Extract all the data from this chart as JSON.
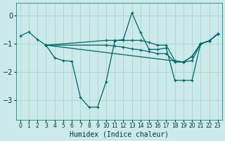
{
  "xlabel": "Humidex (Indice chaleur)",
  "background_color": "#cceaea",
  "grid_color": "#aad4d4",
  "line_color": "#006666",
  "xlim": [
    -0.5,
    23.5
  ],
  "ylim": [
    -3.7,
    0.45
  ],
  "yticks": [
    0,
    -1,
    -2,
    -3
  ],
  "xticks": [
    0,
    1,
    2,
    3,
    4,
    5,
    6,
    7,
    8,
    9,
    10,
    11,
    12,
    13,
    14,
    15,
    16,
    17,
    18,
    19,
    20,
    21,
    22,
    23
  ],
  "lines": [
    {
      "x": [
        0,
        1,
        2,
        3,
        4,
        5,
        6,
        7,
        8,
        9,
        10,
        11,
        12,
        13,
        14,
        15,
        16,
        17,
        18,
        19,
        20,
        21,
        22,
        23
      ],
      "y": [
        -0.72,
        -0.58,
        -0.85,
        -1.05,
        -1.5,
        -1.6,
        -1.62,
        -2.9,
        -3.25,
        -3.25,
        -2.35,
        -0.9,
        -0.85,
        0.1,
        -0.6,
        -1.2,
        -1.2,
        -1.15,
        -2.3,
        -2.3,
        -2.3,
        -1.0,
        -0.9,
        -0.65
      ]
    },
    {
      "x": [
        3,
        10,
        11,
        12,
        13,
        14,
        15,
        16,
        17,
        18,
        19,
        20,
        21,
        22,
        23
      ],
      "y": [
        -1.05,
        -0.88,
        -0.88,
        -0.88,
        -0.88,
        -0.88,
        -0.95,
        -1.05,
        -1.05,
        -1.6,
        -1.65,
        -1.45,
        -1.0,
        -0.9,
        -0.65
      ]
    },
    {
      "x": [
        3,
        10,
        11,
        12,
        13,
        14,
        15,
        16,
        17,
        18,
        19,
        20,
        21,
        22,
        23
      ],
      "y": [
        -1.05,
        -1.05,
        -1.08,
        -1.12,
        -1.18,
        -1.22,
        -1.28,
        -1.35,
        -1.35,
        -1.65,
        -1.65,
        -1.6,
        -1.0,
        -0.9,
        -0.65
      ]
    },
    {
      "x": [
        3,
        19,
        20,
        21,
        22,
        23
      ],
      "y": [
        -1.05,
        -1.65,
        -1.45,
        -1.0,
        -0.9,
        -0.65
      ]
    }
  ]
}
